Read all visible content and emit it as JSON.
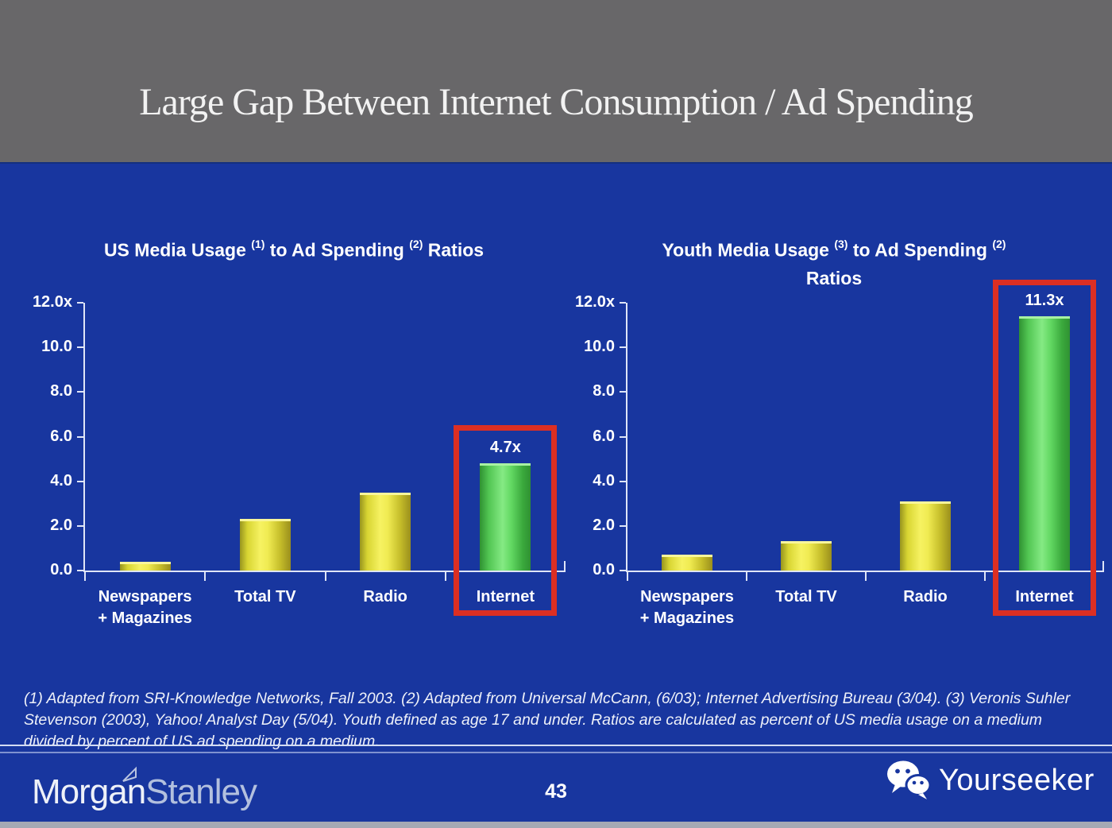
{
  "slide": {
    "title": "Large Gap Between Internet Consumption / Ad Spending",
    "page_number": "43",
    "footnote": "(1) Adapted from SRI-Knowledge Networks, Fall 2003.  (2) Adapted from Universal McCann, (6/03); Internet Advertising Bureau (3/04). (3) Veronis Suhler Stevenson (2003), Yahoo! Analyst Day (5/04).  Youth defined as age 17 and under.  Ratios are calculated as percent of US media usage on a medium divided by percent of US ad spending on a medium.",
    "brand_left": {
      "part1": "Morgan",
      "part2": "Stanley"
    },
    "brand_right": "Yourseeker"
  },
  "colors": {
    "header_bg": "#686769",
    "body_bg": "#18369f",
    "title_text": "#f2f2f2",
    "chart_text": "#ffffff",
    "axis": "#dfe5f7",
    "bar_yellow": "#f0ec55",
    "bar_green": "#6ade6a",
    "highlight_box_red": "#dc2f23",
    "divider": "#d3dcf3",
    "brand_morgan": "#eef1f8",
    "brand_stanley": "#b3c0de",
    "bottom_strip": "#a5a9b4"
  },
  "icons": {
    "wechat_icon": "two chat bubbles with eyes",
    "morgan_stanley_flag_icon": "outlined pennant triangle"
  },
  "chart_data": [
    {
      "type": "bar",
      "title": "US Media Usage (1) to Ad Spending (2) Ratios",
      "title_segments": [
        {
          "text": "US Media Usage "
        },
        {
          "sup": "(1)"
        },
        {
          "text": " to Ad Spending "
        },
        {
          "sup": "(2)"
        },
        {
          "text": " Ratios"
        }
      ],
      "categories": [
        [
          "Newspapers",
          "+ Magazines"
        ],
        [
          "Total TV"
        ],
        [
          "Radio"
        ],
        [
          "Internet"
        ]
      ],
      "values": [
        0.3,
        2.2,
        3.4,
        4.7
      ],
      "bar_labels": [
        "",
        "",
        "",
        "4.7x"
      ],
      "highlight_index": 3,
      "y_tick_labels": [
        "12.0x",
        "10.0",
        "8.0",
        "6.0",
        "4.0",
        "2.0",
        "0.0"
      ],
      "y_tick_values": [
        12,
        10,
        8,
        6,
        4,
        2,
        0
      ],
      "ylim": [
        0,
        12
      ],
      "xlabel": "",
      "ylabel": "",
      "grid": false,
      "legend": "none"
    },
    {
      "type": "bar",
      "title": "Youth Media Usage (3) to Ad Spending (2) Ratios",
      "title_segments": [
        {
          "text": "Youth Media Usage "
        },
        {
          "sup": "(3)"
        },
        {
          "text": " to Ad Spending "
        },
        {
          "sup": "(2)"
        },
        {
          "br": true
        },
        {
          "text": "Ratios"
        }
      ],
      "categories": [
        [
          "Newspapers",
          "+ Magazines"
        ],
        [
          "Total TV"
        ],
        [
          "Radio"
        ],
        [
          "Internet"
        ]
      ],
      "values": [
        0.6,
        1.2,
        3.0,
        11.3
      ],
      "bar_labels": [
        "",
        "",
        "",
        "11.3x"
      ],
      "highlight_index": 3,
      "y_tick_labels": [
        "12.0x",
        "10.0",
        "8.0",
        "6.0",
        "4.0",
        "2.0",
        "0.0"
      ],
      "y_tick_values": [
        12,
        10,
        8,
        6,
        4,
        2,
        0
      ],
      "ylim": [
        0,
        12
      ],
      "xlabel": "",
      "ylabel": "",
      "grid": false,
      "legend": "none"
    }
  ]
}
